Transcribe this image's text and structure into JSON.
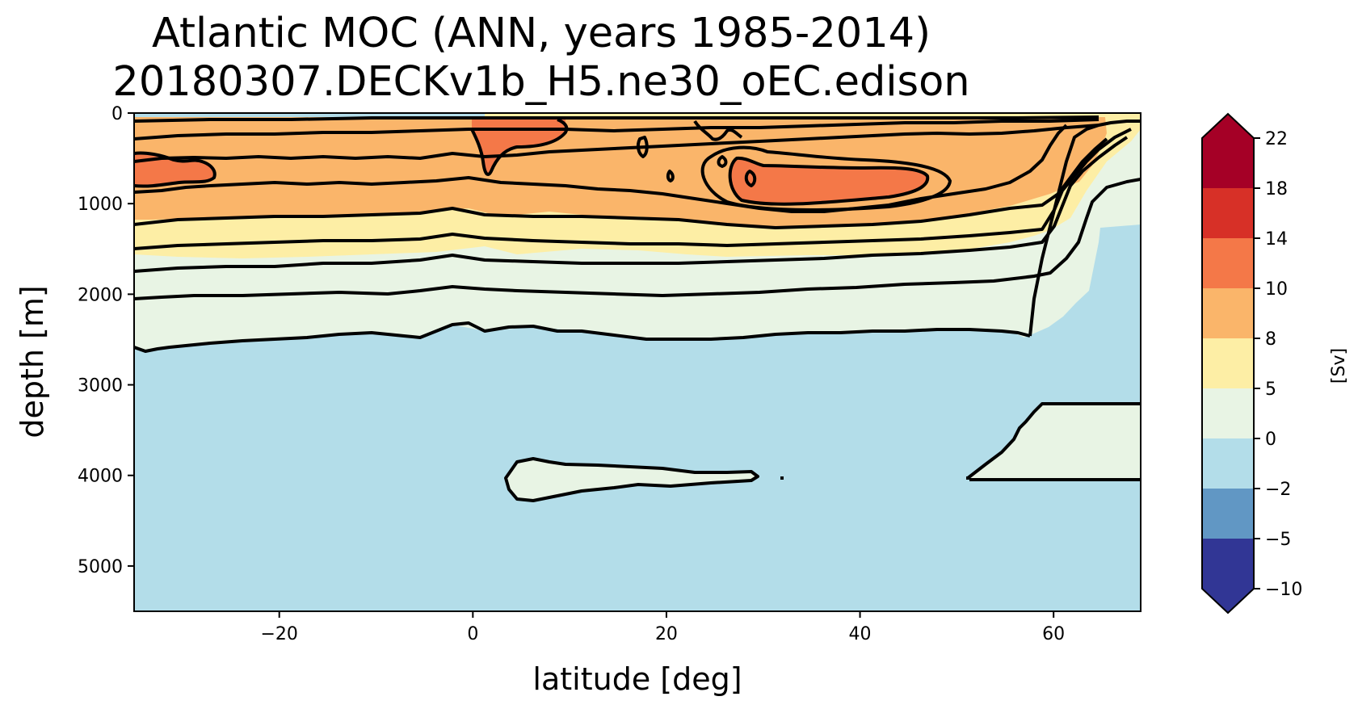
{
  "chart_data": {
    "type": "contourf",
    "title_line1": "Atlantic MOC (ANN, years 1985-2014)",
    "title_line2": "20180307.DECKv1b_H5.ne30_oEC.edison",
    "xlabel": "latitude [deg]",
    "ylabel": "depth [m]",
    "xlim": [
      -35,
      69
    ],
    "ylim": [
      5500,
      0
    ],
    "x_ticks": [
      -20,
      0,
      20,
      40,
      60
    ],
    "x_tick_labels": [
      "−20",
      "0",
      "20",
      "40",
      "60"
    ],
    "y_ticks": [
      0,
      1000,
      2000,
      3000,
      4000,
      5000
    ],
    "y_tick_labels": [
      "0",
      "1000",
      "2000",
      "3000",
      "4000",
      "5000"
    ],
    "colorbar": {
      "label": "[Sv]",
      "levels": [
        -10,
        -5,
        -2,
        0,
        5,
        8,
        10,
        14,
        18,
        22
      ],
      "level_labels": [
        "−10",
        "−5",
        "−2",
        "0",
        "5",
        "8",
        "10",
        "14",
        "18",
        "22"
      ],
      "colors": [
        "#313695",
        "#6197c4",
        "#b3dde9",
        "#e8f4e4",
        "#fdeea5",
        "#fab56a",
        "#f47848",
        "#d73027",
        "#a50026"
      ],
      "extend": "both"
    },
    "regions": [
      {
        "level": "0-5",
        "color": "#e8f4e4",
        "lat": [
          -35,
          69
        ],
        "depth_top": [
          1600,
          1400
        ],
        "depth_bottom": [
          2600,
          2400
        ]
      },
      {
        "level": "5-8",
        "color": "#fdeea5",
        "lat": [
          -35,
          64
        ],
        "depth_top": [
          1200,
          1000
        ],
        "depth_bottom": [
          1600,
          1500
        ]
      },
      {
        "level": "8-10",
        "color": "#fab56a",
        "lat": [
          -35,
          62
        ],
        "depth_top": [
          50,
          50
        ],
        "depth_bottom": [
          1200,
          1000
        ]
      },
      {
        "level": "10-14",
        "color": "#f47848",
        "lat_range": [
          29,
          47
        ],
        "depth_range": [
          450,
          1000
        ]
      },
      {
        "level": "10-14",
        "color": "#f47848",
        "lat_range": [
          0.5,
          12
        ],
        "depth_range": [
          100,
          700
        ]
      },
      {
        "level": "10-14",
        "color": "#f47848",
        "lat_range": [
          -35,
          -27
        ],
        "depth_range": [
          400,
          800
        ]
      },
      {
        "level": "0-5",
        "color": "#e8f4e4",
        "lat_range": [
          3.5,
          30
        ],
        "depth_range": [
          3750,
          4300
        ]
      },
      {
        "level": "0-5",
        "color": "#e8f4e4",
        "lat_range": [
          52,
          69
        ],
        "depth_range": [
          3200,
          4040
        ]
      }
    ]
  }
}
